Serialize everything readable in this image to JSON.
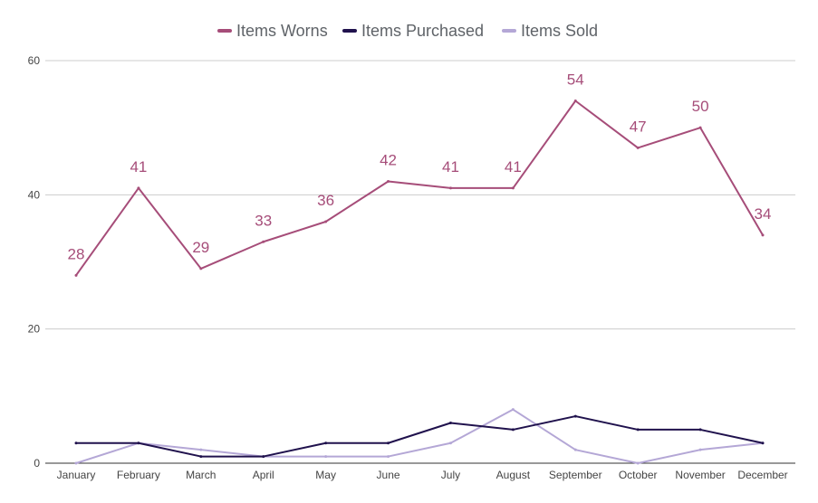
{
  "chart_data": {
    "type": "line",
    "title": "",
    "xlabel": "",
    "ylabel": "",
    "ylim": [
      0,
      60
    ],
    "yticks": [
      0,
      20,
      40,
      60
    ],
    "grid": true,
    "legend_position": "top-center",
    "categories": [
      "January",
      "February",
      "March",
      "April",
      "May",
      "June",
      "July",
      "August",
      "September",
      "October",
      "November",
      "December"
    ],
    "series": [
      {
        "name": "Items Worns",
        "color": "#a64d79",
        "values": [
          28,
          41,
          29,
          33,
          36,
          42,
          41,
          41,
          54,
          47,
          50,
          34
        ],
        "show_labels": true
      },
      {
        "name": "Items Purchased",
        "color": "#20124d",
        "values": [
          3,
          3,
          1,
          1,
          3,
          3,
          6,
          5,
          7,
          5,
          5,
          3
        ],
        "show_labels": false
      },
      {
        "name": "Items Sold",
        "color": "#b4a7d6",
        "values": [
          0,
          3,
          2,
          1,
          1,
          1,
          3,
          8,
          2,
          0,
          2,
          3
        ],
        "show_labels": false
      }
    ]
  }
}
